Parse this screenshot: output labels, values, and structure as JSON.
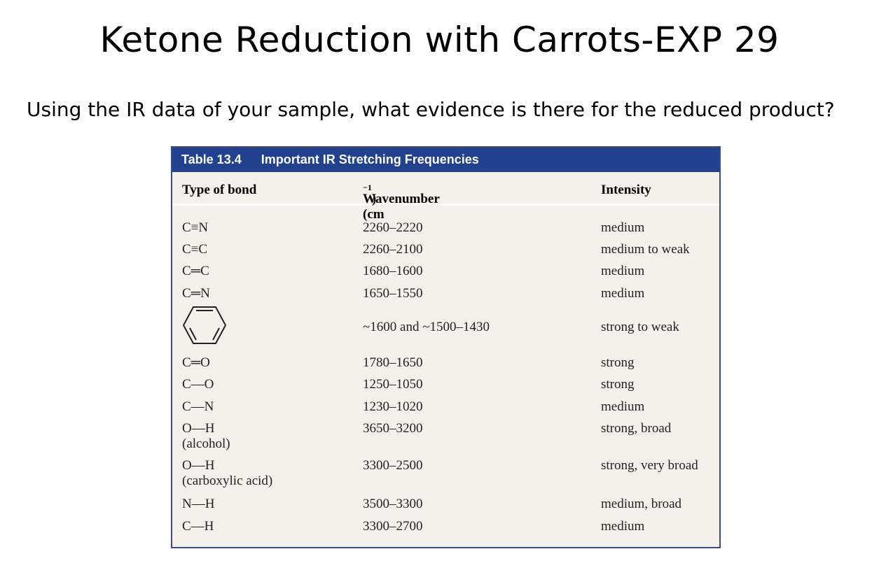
{
  "slide": {
    "title": "Ketone Reduction with Carrots-EXP 29",
    "question": "Using the IR data of your sample, what evidence is there for the reduced product?"
  },
  "table": {
    "number": "Table 13.4",
    "caption": "Important IR Stretching Frequencies",
    "header_color": "#22428f",
    "columns": {
      "bond": "Type of bond",
      "wavenumber_prefix": "Wavenumber (cm",
      "wavenumber_sup": "−1",
      "wavenumber_suffix": ")",
      "intensity": "Intensity"
    },
    "rows": [
      {
        "bond": "C≡N",
        "note": "",
        "wavenumber": "2260–2220",
        "intensity": "medium"
      },
      {
        "bond": "C≡C",
        "note": "",
        "wavenumber": "2260–2100",
        "intensity": "medium to weak"
      },
      {
        "bond": "C═C",
        "note": "",
        "wavenumber": "1680–1600",
        "intensity": "medium"
      },
      {
        "bond": "C═N",
        "note": "",
        "wavenumber": "1650–1550",
        "intensity": "medium"
      },
      {
        "bond": "",
        "bond_icon": "benzene-ring-icon",
        "note": "",
        "wavenumber": "~1600 and ~1500–1430",
        "intensity": "strong to weak"
      },
      {
        "bond": "C═O",
        "note": "",
        "wavenumber": "1780–1650",
        "intensity": "strong"
      },
      {
        "bond": "C—O",
        "note": "",
        "wavenumber": "1250–1050",
        "intensity": "strong"
      },
      {
        "bond": "C—N",
        "note": "",
        "wavenumber": "1230–1020",
        "intensity": "medium"
      },
      {
        "bond": "O—H",
        "note": "(alcohol)",
        "wavenumber": "3650–3200",
        "intensity": "strong, broad"
      },
      {
        "bond": "O—H",
        "note": "(carboxylic acid)",
        "wavenumber": "3300–2500",
        "intensity": "strong, very broad"
      },
      {
        "bond": "N—H",
        "note": "",
        "wavenumber": "3500–3300",
        "intensity": "medium, broad"
      },
      {
        "bond": "C—H",
        "note": "",
        "wavenumber": "3300–2700",
        "intensity": "medium"
      }
    ]
  }
}
